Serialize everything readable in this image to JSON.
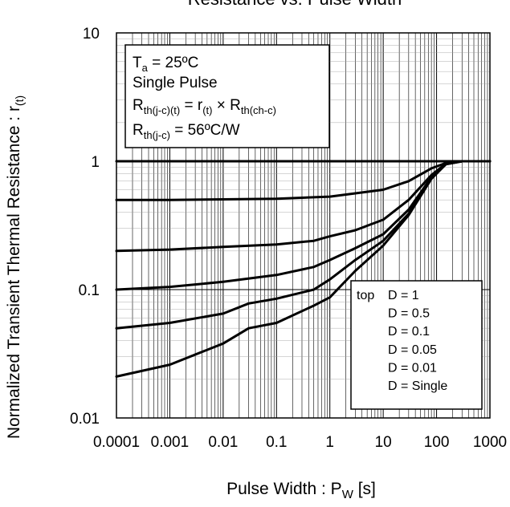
{
  "chart_data": {
    "type": "line",
    "title": "Resistance vs. Pulse Width",
    "xlabel": {
      "main": "Pulse Width : P",
      "sub": "W",
      "unit": " [s]"
    },
    "ylabel": {
      "main": "Normalized Transient Thermal Resistance : r",
      "sub": "(t)"
    },
    "x_scale": "log",
    "y_scale": "log",
    "xlim": [
      0.0001,
      1000
    ],
    "ylim": [
      0.01,
      10
    ],
    "x_ticks": [
      "0.0001",
      "0.001",
      "0.01",
      "0.1",
      "1",
      "10",
      "100",
      "1000"
    ],
    "y_ticks": [
      "10",
      "1",
      "0.1",
      "0.01"
    ],
    "grid": true,
    "conditions": [
      {
        "main": "T",
        "sub": "a",
        "rest": " = 25ºC"
      },
      {
        "main": "Single Pulse"
      },
      {
        "main": "R",
        "sub": "th(j-c)(t)",
        "rest": " = r",
        "sub2": "(t)",
        "rest2": " × R",
        "sub3": "th(ch-c)"
      },
      {
        "main": "R",
        "sub": "th(j-c)",
        "rest": " = 56ºC/W"
      }
    ],
    "legend_placement": "lower-right",
    "legend_prefix": "top",
    "series": [
      {
        "name": "D = 1",
        "x": [
          0.0001,
          1,
          100,
          1000
        ],
        "y": [
          1.0,
          1.0,
          1.0,
          1.0
        ]
      },
      {
        "name": "D = 0.5",
        "x": [
          0.0001,
          0.001,
          0.01,
          0.1,
          1,
          10,
          30,
          80,
          150,
          300,
          1000
        ],
        "y": [
          0.5,
          0.5,
          0.505,
          0.51,
          0.53,
          0.6,
          0.7,
          0.88,
          0.97,
          1.0,
          1.0
        ]
      },
      {
        "name": "D = 0.1",
        "x": [
          0.0001,
          0.001,
          0.01,
          0.1,
          0.5,
          1,
          3,
          10,
          30,
          80,
          150,
          300,
          1000
        ],
        "y": [
          0.2,
          0.205,
          0.215,
          0.225,
          0.24,
          0.26,
          0.29,
          0.35,
          0.5,
          0.78,
          0.96,
          1.0,
          1.0
        ]
      },
      {
        "name": "D = 0.05",
        "x": [
          0.0001,
          0.001,
          0.01,
          0.1,
          0.5,
          1,
          3,
          10,
          30,
          80,
          150,
          300,
          1000
        ],
        "y": [
          0.1,
          0.105,
          0.115,
          0.13,
          0.15,
          0.17,
          0.21,
          0.27,
          0.42,
          0.75,
          0.95,
          1.0,
          1.0
        ]
      },
      {
        "name": "D = 0.01",
        "x": [
          0.0001,
          0.001,
          0.01,
          0.03,
          0.1,
          0.5,
          1,
          3,
          10,
          30,
          80,
          150,
          300,
          1000
        ],
        "y": [
          0.05,
          0.055,
          0.065,
          0.078,
          0.085,
          0.1,
          0.12,
          0.17,
          0.24,
          0.39,
          0.74,
          0.95,
          1.0,
          1.0
        ]
      },
      {
        "name": "D = Single",
        "x": [
          0.0001,
          0.001,
          0.01,
          0.03,
          0.1,
          0.5,
          1,
          3,
          10,
          30,
          80,
          150,
          300,
          1000
        ],
        "y": [
          0.021,
          0.026,
          0.038,
          0.05,
          0.055,
          0.075,
          0.087,
          0.14,
          0.22,
          0.38,
          0.73,
          0.95,
          1.0,
          1.0
        ]
      }
    ]
  }
}
